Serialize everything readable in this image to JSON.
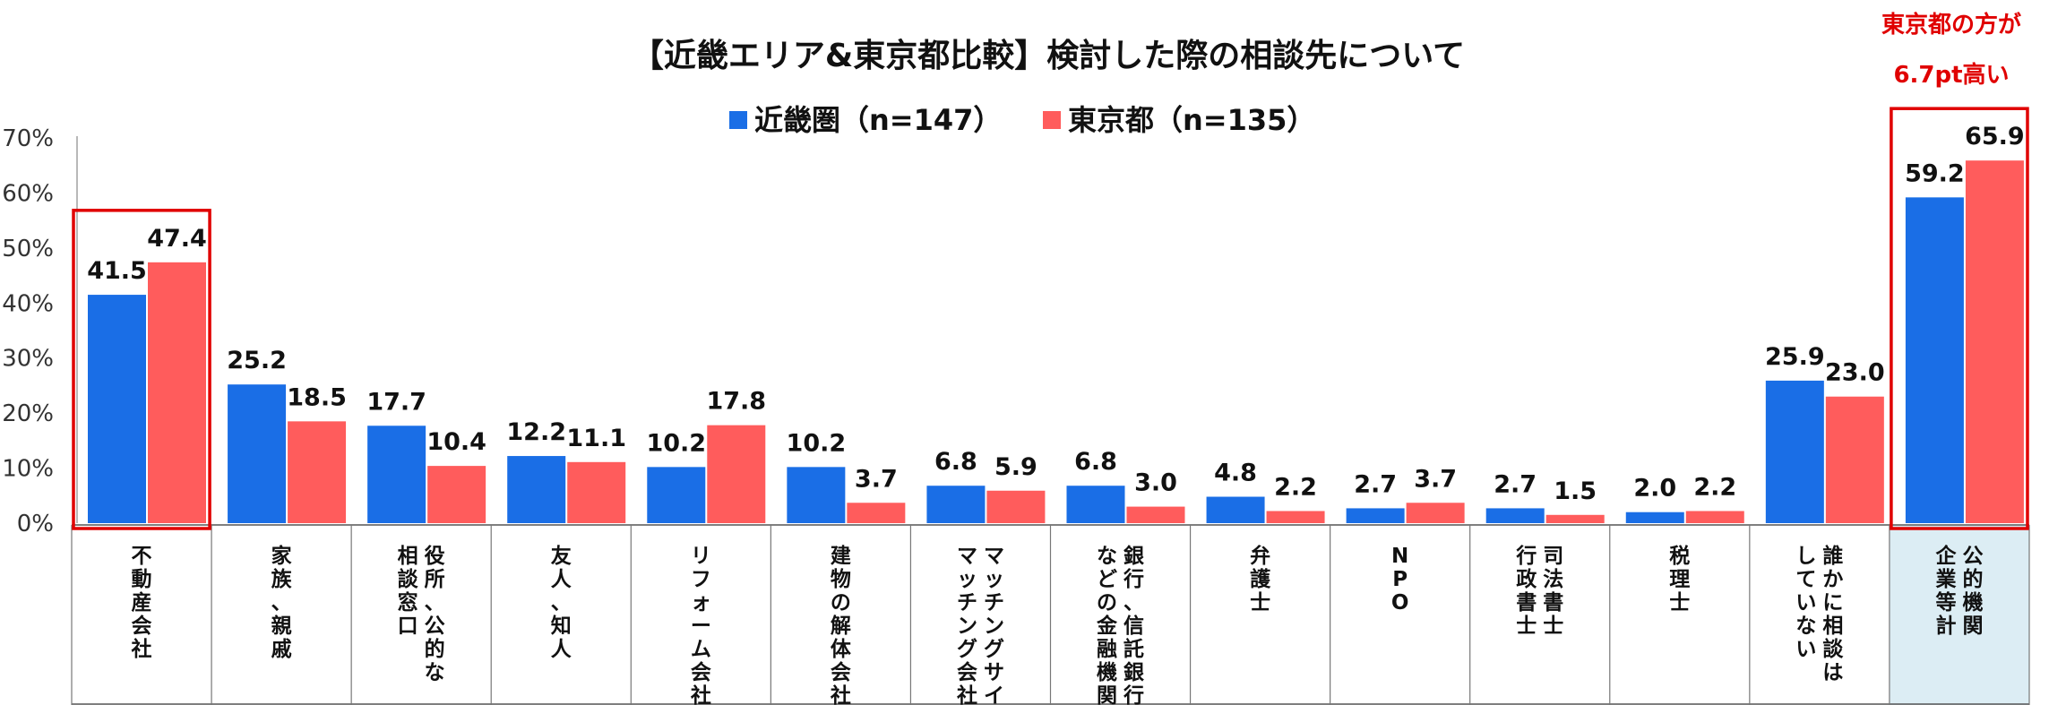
{
  "chart_data": {
    "type": "bar",
    "title": "【近畿エリア&東京都比較】検討した際の相談先について",
    "ylim": [
      0,
      70
    ],
    "yticks": [
      "0%",
      "10%",
      "20%",
      "30%",
      "40%",
      "50%",
      "60%",
      "70%"
    ],
    "categories": [
      [
        "不動産会社"
      ],
      [
        "家族、親戚"
      ],
      [
        "役所、公的な",
        "相談窓口"
      ],
      [
        "友人、知人"
      ],
      [
        "リフォーム会社"
      ],
      [
        "建物の解体会社"
      ],
      [
        "マッチングサイト",
        "マッチング会社"
      ],
      [
        "銀行、信託銀行",
        "などの金融機関"
      ],
      [
        "弁護士"
      ],
      [
        "NPO"
      ],
      [
        "司法書士",
        "行政書士"
      ],
      [
        "税理士"
      ],
      [
        "誰かに相談は",
        "していない"
      ],
      [
        "公的機関",
        "企業等計"
      ]
    ],
    "series": [
      {
        "name": "近畿圏（n=147）",
        "color": "#1a6ee6",
        "values": [
          41.5,
          25.2,
          17.7,
          12.2,
          10.2,
          10.2,
          6.8,
          6.8,
          4.8,
          2.7,
          2.7,
          2.0,
          25.9,
          59.2
        ],
        "labels": [
          "41.5",
          "25.2",
          "17.7",
          "12.2",
          "10.2",
          "10.2",
          "6.8",
          "6.8",
          "4.8",
          "2.7",
          "2.7",
          "2.0",
          "25.9",
          "59.2"
        ]
      },
      {
        "name": "東京都（n=135）",
        "color": "#ff5c5c",
        "values": [
          47.4,
          18.5,
          10.4,
          11.1,
          17.8,
          3.7,
          5.9,
          3.0,
          2.2,
          3.7,
          1.5,
          2.2,
          23.0,
          65.9
        ],
        "labels": [
          "47.4",
          "18.5",
          "10.4",
          "11.1",
          "17.8",
          "3.7",
          "5.9",
          "3.0",
          "2.2",
          "3.7",
          "1.5",
          "2.2",
          "23.0",
          "65.9"
        ]
      }
    ],
    "highlighted_categories": [
      0,
      13
    ],
    "shaded_category": 13,
    "callout": [
      "東京都の方が",
      "6.7pt高い"
    ],
    "highlight_color": "#e00000",
    "shade_color": "#dcedf4"
  }
}
